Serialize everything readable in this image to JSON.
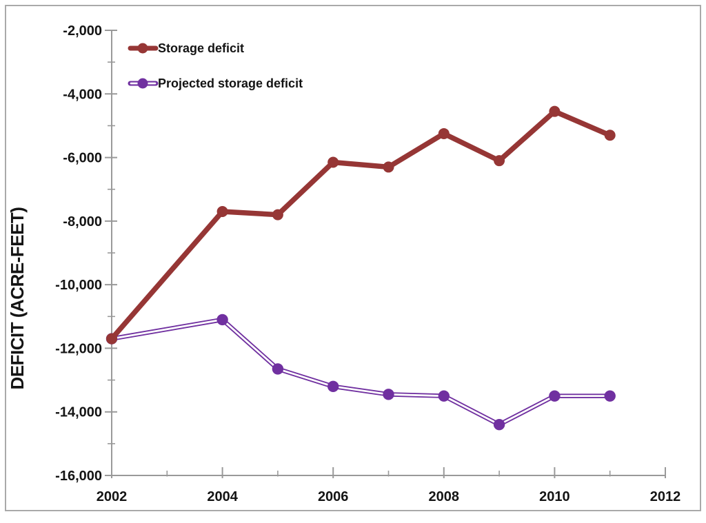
{
  "chart_data": {
    "type": "line",
    "title": "",
    "xlabel": "",
    "ylabel": "DEFICIT (ACRE-FEET)",
    "xlim": [
      2002,
      2012
    ],
    "ylim": [
      -16000,
      -2000
    ],
    "grid": false,
    "legend_position": "top-left-inside",
    "axis_color": "#999999",
    "x_major_ticks": [
      2002,
      2004,
      2006,
      2008,
      2010,
      2012
    ],
    "x_tick_labels": [
      "2002",
      "2004",
      "2006",
      "2008",
      "2010",
      "2012"
    ],
    "x_minor_ticks": [
      2003,
      2005,
      2007,
      2009,
      2011
    ],
    "y_major_ticks": [
      -2000,
      -4000,
      -6000,
      -8000,
      -10000,
      -12000,
      -14000,
      -16000
    ],
    "y_tick_labels": [
      "-2,000",
      "-4,000",
      "-6,000",
      "-8,000",
      "-10,000",
      "-12,000",
      "-14,000",
      "-16,000"
    ],
    "y_minor_ticks": [
      -3000,
      -5000,
      -7000,
      -9000,
      -11000,
      -13000,
      -15000
    ],
    "series": [
      {
        "name": "Storage deficit",
        "color": "#963635",
        "marker": "circle",
        "line_style": "solid-thick",
        "x": [
          2002,
          2004,
          2005,
          2006,
          2007,
          2008,
          2009,
          2010,
          2011
        ],
        "values": [
          -11700,
          -7700,
          -7800,
          -6150,
          -6300,
          -5250,
          -6100,
          -4550,
          -5300
        ]
      },
      {
        "name": "Projected storage deficit",
        "color": "#7030A0",
        "marker": "circle",
        "line_style": "double-line-white-core",
        "x": [
          2002,
          2004,
          2005,
          2006,
          2007,
          2008,
          2009,
          2010,
          2011
        ],
        "values": [
          -11700,
          -11100,
          -12650,
          -13200,
          -13450,
          -13500,
          -14400,
          -13500,
          -13500
        ]
      }
    ]
  },
  "frame": {
    "border_color": "#A9A9A9",
    "background": "#FFFFFF"
  }
}
